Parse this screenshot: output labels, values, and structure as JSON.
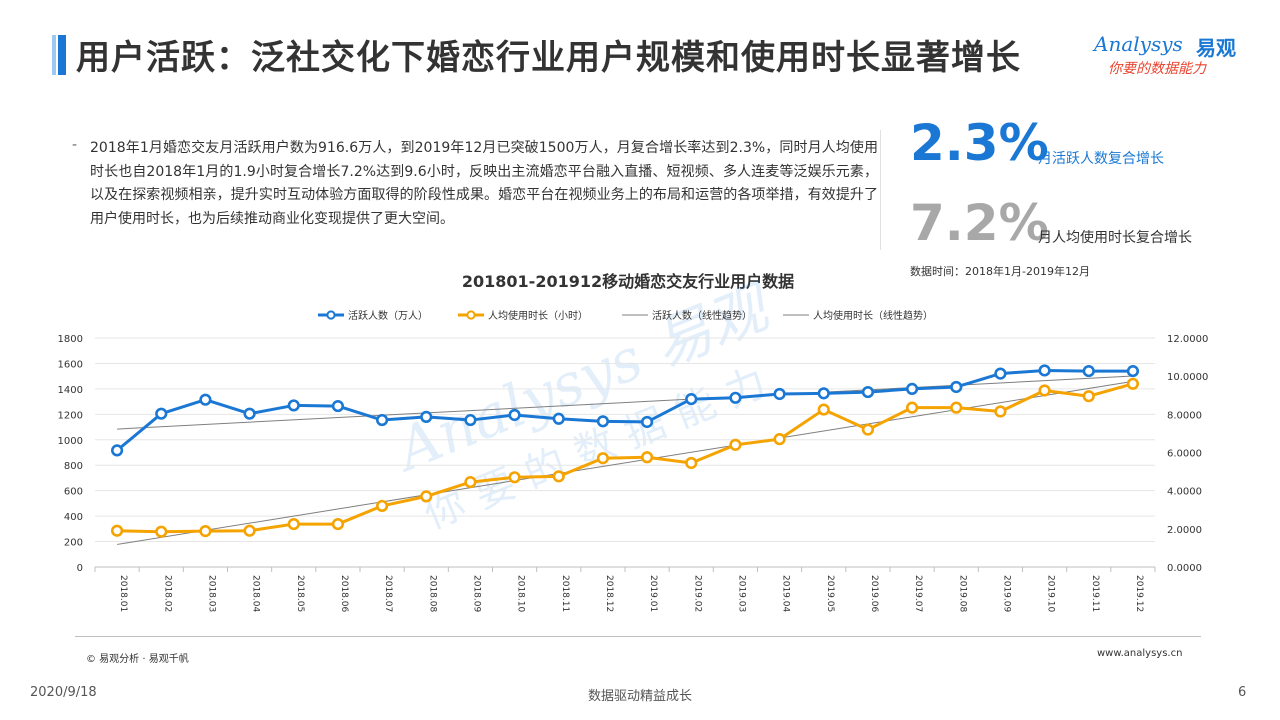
{
  "header": {
    "title": "用户活跃：泛社交化下婚恋行业用户规模和使用时长显著增长"
  },
  "logo": {
    "brand_en": "Analysys",
    "brand_cn": "易观",
    "tagline": "你要的数据能力"
  },
  "summary": {
    "bullet": "-",
    "text": "2018年1月婚恋交友月活跃用户数为916.6万人，到2019年12月已突破1500万人，月复合增长率达到2.3%，同时月人均使用时长也自2018年1月的1.9小时复合增长7.2%达到9.6小时，反映出主流婚恋平台融入直播、短视频、多人连麦等泛娱乐元素，以及在探索视频相亲，提升实时互动体验方面取得的阶段性成果。婚恋平台在视频业务上的布局和运营的各项举措，有效提升了用户使用时长，也为后续推动商业化变现提供了更大空间。"
  },
  "kpis": [
    {
      "value": "2.3%",
      "label": "月活跃人数复合增长"
    },
    {
      "value": "7.2%",
      "label": "月人均使用时长复合增长"
    }
  ],
  "data_time": "数据时间：2018年1月-2019年12月",
  "colors": {
    "accent_blue": "#1a78d4",
    "orange": "#f5a300",
    "trend_gray": "#7f7f7f",
    "kpi_gray": "#a8a8a8"
  },
  "chart_data": {
    "type": "line",
    "title": "201801-201912移动婚恋交友行业用户数据",
    "categories": [
      "2018.01",
      "2018.02",
      "2018.03",
      "2018.04",
      "2018.05",
      "2018.06",
      "2018.07",
      "2018.08",
      "2018.09",
      "2018.10",
      "2018.11",
      "2018.12",
      "2019.01",
      "2019.02",
      "2019.03",
      "2019.04",
      "2019.05",
      "2019.06",
      "2019.07",
      "2019.08",
      "2019.09",
      "2019.10",
      "2019.11",
      "2019.12"
    ],
    "series": [
      {
        "name": "活跃人数（万人）",
        "axis": "left",
        "color": "#1a78d4",
        "values": [
          916.6,
          1205,
          1315,
          1205,
          1270,
          1265,
          1155,
          1180,
          1155,
          1195,
          1165,
          1145,
          1140,
          1320,
          1330,
          1360,
          1365,
          1375,
          1400,
          1415,
          1520,
          1545,
          1540,
          1540
        ]
      },
      {
        "name": "人均使用时长（小时）",
        "axis": "right",
        "color": "#f5a300",
        "values": [
          1.9,
          1.85,
          1.88,
          1.9,
          2.25,
          2.25,
          3.2,
          3.7,
          4.45,
          4.7,
          4.75,
          5.7,
          5.75,
          5.45,
          6.4,
          6.7,
          8.25,
          7.2,
          8.35,
          8.35,
          8.15,
          9.25,
          8.95,
          9.6
        ]
      },
      {
        "name": "活跃人数（线性趋势）",
        "axis": "left",
        "trend_of": 0,
        "color": "#7f7f7f"
      },
      {
        "name": "人均使用时长（线性趋势）",
        "axis": "right",
        "trend_of": 1,
        "color": "#7f7f7f"
      }
    ],
    "y_left": {
      "min": 0,
      "max": 1800,
      "step": 200,
      "ticks": [
        "0",
        "200",
        "400",
        "600",
        "800",
        "1000",
        "1200",
        "1400",
        "1600",
        "1800"
      ]
    },
    "y_right": {
      "min": 0,
      "max": 12,
      "step": 2,
      "ticks": [
        "0.0000",
        "2.0000",
        "4.0000",
        "6.0000",
        "8.0000",
        "10.0000",
        "12.0000"
      ]
    },
    "legend": [
      "活跃人数（万人）",
      "人均使用时长（小时）",
      "活跃人数（线性趋势）",
      "人均使用时长（线性趋势）"
    ],
    "legend_position": "top",
    "grid": "horizontal"
  },
  "watermark": {
    "en": "Analysys",
    "cn": "易观",
    "tagline": "你要的数据能力"
  },
  "footer": {
    "copyright": "© 易观分析 · 易观千帆",
    "website": "www.analysys.cn",
    "date": "2020/9/18",
    "center": "数据驱动精益成长",
    "page": "6"
  }
}
